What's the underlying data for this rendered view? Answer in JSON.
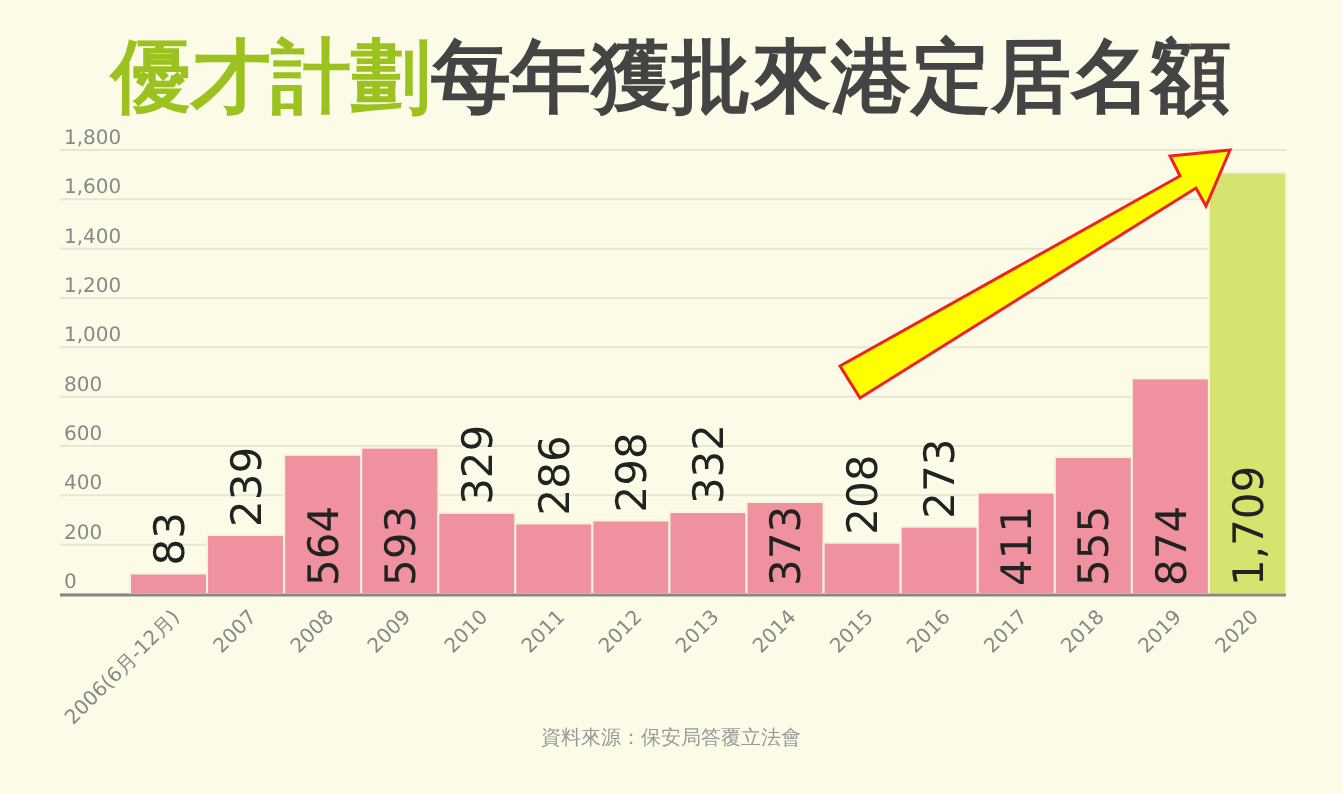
{
  "chart_data": {
    "type": "bar",
    "title": "優才計劃每年獲批來港定居名額",
    "categories": [
      "2006(6月-12月)",
      "2007",
      "2008",
      "2009",
      "2010",
      "2011",
      "2012",
      "2013",
      "2014",
      "2015",
      "2016",
      "2017",
      "2018",
      "2019",
      "2020"
    ],
    "values": [
      83,
      239,
      564,
      593,
      329,
      286,
      298,
      332,
      373,
      208,
      273,
      411,
      555,
      874,
      1709
    ],
    "colors": [
      "#f0919f",
      "#f0919f",
      "#f0919f",
      "#f0919f",
      "#f0919f",
      "#f0919f",
      "#f0919f",
      "#f0919f",
      "#f0919f",
      "#f0919f",
      "#f0919f",
      "#f0919f",
      "#f0919f",
      "#f0919f",
      "#d6e36e"
    ],
    "ylim": [
      0,
      1800
    ],
    "yticks": [
      {
        "value": 0,
        "label": "0"
      },
      {
        "value": 200,
        "label": "200"
      },
      {
        "value": 400,
        "label": "400"
      },
      {
        "value": 600,
        "label": "600"
      },
      {
        "value": 800,
        "label": "800"
      },
      {
        "value": 1000,
        "label": "1,000"
      },
      {
        "value": 1200,
        "label": "1,200"
      },
      {
        "value": 1400,
        "label": "1,400"
      },
      {
        "value": 1600,
        "label": "1,600"
      },
      {
        "value": 1800,
        "label": "1,800"
      }
    ],
    "value_labels": [
      "83",
      "239",
      "564",
      "593",
      "329",
      "286",
      "298",
      "332",
      "373",
      "208",
      "273",
      "411",
      "555",
      "874",
      "1,709"
    ],
    "grid": "y",
    "annotations": [
      "資料來源：保安局答覆立法會"
    ]
  }
}
